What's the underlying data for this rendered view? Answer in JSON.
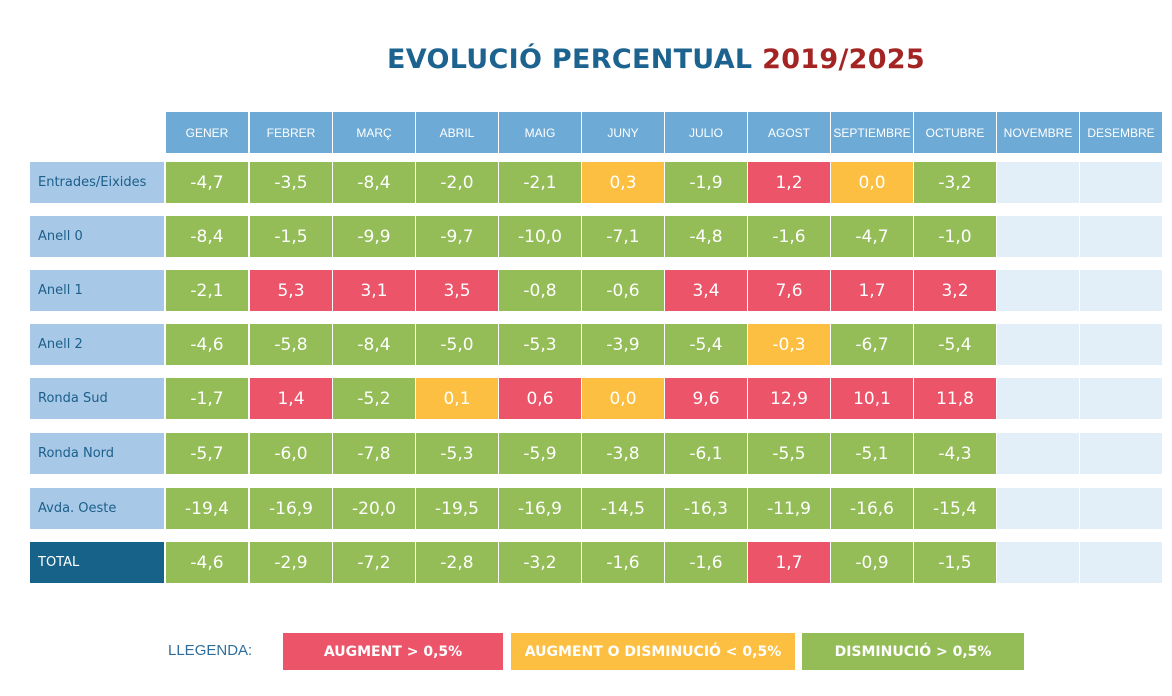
{
  "chart_data": {
    "type": "table",
    "title": "EVOLUCIÓ PERCENTUAL",
    "title_period": "2019/2025",
    "columns": [
      "GENER",
      "FEBRER",
      "MARÇ",
      "ABRIL",
      "MAIG",
      "JUNY",
      "JULIO",
      "AGOST",
      "SEPTIEMBRE",
      "OCTUBRE",
      "NOVEMBRE",
      "DESEMBRE"
    ],
    "rows": [
      {
        "label": "Entrades/Eixides",
        "values": [
          "-4,7",
          "-3,5",
          "-8,4",
          "-2,0",
          "-2,1",
          "0,3",
          "-1,9",
          "1,2",
          "0,0",
          "-3,2",
          null,
          null
        ],
        "status": [
          "d",
          "d",
          "d",
          "d",
          "d",
          "n",
          "d",
          "a",
          "n",
          "d",
          null,
          null
        ]
      },
      {
        "label": "Anell 0",
        "values": [
          "-8,4",
          "-1,5",
          "-9,9",
          "-9,7",
          "-10,0",
          "-7,1",
          "-4,8",
          "-1,6",
          "-4,7",
          "-1,0",
          null,
          null
        ],
        "status": [
          "d",
          "d",
          "d",
          "d",
          "d",
          "d",
          "d",
          "d",
          "d",
          "d",
          null,
          null
        ]
      },
      {
        "label": "Anell 1",
        "values": [
          "-2,1",
          "5,3",
          "3,1",
          "3,5",
          "-0,8",
          "-0,6",
          "3,4",
          "7,6",
          "1,7",
          "3,2",
          null,
          null
        ],
        "status": [
          "d",
          "a",
          "a",
          "a",
          "d",
          "d",
          "a",
          "a",
          "a",
          "a",
          null,
          null
        ]
      },
      {
        "label": "Anell 2",
        "values": [
          "-4,6",
          "-5,8",
          "-8,4",
          "-5,0",
          "-5,3",
          "-3,9",
          "-5,4",
          "-0,3",
          "-6,7",
          "-5,4",
          null,
          null
        ],
        "status": [
          "d",
          "d",
          "d",
          "d",
          "d",
          "d",
          "d",
          "n",
          "d",
          "d",
          null,
          null
        ]
      },
      {
        "label": "Ronda Sud",
        "values": [
          "-1,7",
          "1,4",
          "-5,2",
          "0,1",
          "0,6",
          "0,0",
          "9,6",
          "12,9",
          "10,1",
          "11,8",
          null,
          null
        ],
        "status": [
          "d",
          "a",
          "d",
          "n",
          "a",
          "n",
          "a",
          "a",
          "a",
          "a",
          null,
          null
        ]
      },
      {
        "label": "Ronda Nord",
        "values": [
          "-5,7",
          "-6,0",
          "-7,8",
          "-5,3",
          "-5,9",
          "-3,8",
          "-6,1",
          "-5,5",
          "-5,1",
          "-4,3",
          null,
          null
        ],
        "status": [
          "d",
          "d",
          "d",
          "d",
          "d",
          "d",
          "d",
          "d",
          "d",
          "d",
          null,
          null
        ]
      },
      {
        "label": "Avda. Oeste",
        "values": [
          "-19,4",
          "-16,9",
          "-20,0",
          "-19,5",
          "-16,9",
          "-14,5",
          "-16,3",
          "-11,9",
          "-16,6",
          "-15,4",
          null,
          null
        ],
        "status": [
          "d",
          "d",
          "d",
          "d",
          "d",
          "d",
          "d",
          "d",
          "d",
          "d",
          null,
          null
        ]
      },
      {
        "label": "TOTAL",
        "values": [
          "-4,6",
          "-2,9",
          "-7,2",
          "-2,8",
          "-3,2",
          "-1,6",
          "-1,6",
          "1,7",
          "-0,9",
          "-1,5",
          null,
          null
        ],
        "status": [
          "d",
          "d",
          "d",
          "d",
          "d",
          "d",
          "d",
          "a",
          "d",
          "d",
          null,
          null
        ],
        "is_total": true
      }
    ],
    "legend": {
      "label": "LLEGENDA:",
      "items": [
        {
          "key": "a",
          "text": "AUGMENT  > 0,5%",
          "color": "#ec546a"
        },
        {
          "key": "n",
          "text": "AUGMENT O DISMINUCIÓ  < 0,5%",
          "color": "#fcbf41"
        },
        {
          "key": "d",
          "text": "DISMINUCIÓ  > 0,5%",
          "color": "#94bd58"
        }
      ]
    },
    "colors": {
      "a": "#ec546a",
      "n": "#fcbf41",
      "d": "#94bd58",
      "header": "#6eaad6",
      "row_label": "#a7c8e6",
      "total_label": "#176289",
      "empty": "#e2eef8",
      "title": "#1c6390",
      "title_period": "#a42424"
    }
  }
}
